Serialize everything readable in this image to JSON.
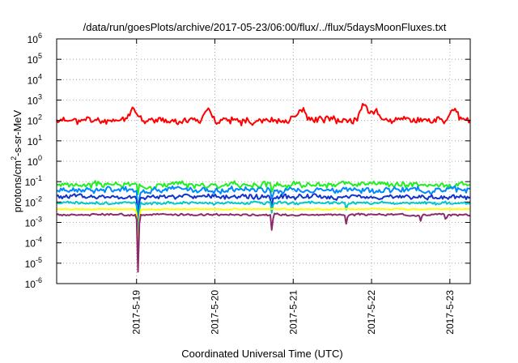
{
  "chart_data": {
    "type": "line",
    "title": "/data/run/goesPlots/archive/2017-05-23/06:00/flux/../flux/5daysMoonFluxes.txt",
    "xlabel": "Coordinated Universal Time (UTC)",
    "ylabel": "protons/cm2-s-sr-MeV",
    "ylabel_parts": {
      "pre": "protons/cm",
      "sup": "2",
      "post": "-s-sr-MeV"
    },
    "yscale": "log",
    "ylim_exp": [
      -6,
      6
    ],
    "y_ticks": [
      {
        "base": "10",
        "exp": "-6"
      },
      {
        "base": "10",
        "exp": "-5"
      },
      {
        "base": "10",
        "exp": "-4"
      },
      {
        "base": "10",
        "exp": "-3"
      },
      {
        "base": "10",
        "exp": "-2"
      },
      {
        "base": "10",
        "exp": "-1"
      },
      {
        "base": "10",
        "exp": "0"
      },
      {
        "base": "10",
        "exp": "1"
      },
      {
        "base": "10",
        "exp": "2"
      },
      {
        "base": "10",
        "exp": "3"
      },
      {
        "base": "10",
        "exp": "4"
      },
      {
        "base": "10",
        "exp": "5"
      },
      {
        "base": "10",
        "exp": "6"
      }
    ],
    "x_ticks": [
      "2017-5-19",
      "2017-5-20",
      "2017-5-21",
      "2017-5-22",
      "2017-5-23"
    ],
    "xlim_days": [
      -1.02,
      4.26
    ],
    "grid": true,
    "legend": "none",
    "series": [
      {
        "color": "#ff0000",
        "base_log": 2.0,
        "amp": 0.22,
        "seed": 11,
        "bumps": [
          [
            -0.05,
            0.55
          ],
          [
            0.9,
            0.5
          ],
          [
            2.1,
            0.6
          ],
          [
            2.9,
            0.7
          ],
          [
            3.05,
            0.55
          ],
          [
            4.05,
            0.55
          ]
        ]
      },
      {
        "color": "#22ee22",
        "base_log": -1.15,
        "amp": 0.18,
        "seed": 3,
        "dips": [
          [
            0.02,
            0.6
          ],
          [
            1.73,
            0.35
          ]
        ]
      },
      {
        "color": "#0088ff",
        "base_log": -1.4,
        "amp": 0.18,
        "seed": 7,
        "dips": [
          [
            0.02,
            1.4
          ],
          [
            1.73,
            0.4
          ]
        ]
      },
      {
        "color": "#1133cc",
        "base_log": -1.75,
        "amp": 0.15,
        "seed": 5,
        "dips": [
          [
            0.02,
            1.8
          ],
          [
            1.73,
            0.5
          ]
        ]
      },
      {
        "color": "#00c8c8",
        "base_log": -2.05,
        "amp": 0.09,
        "seed": 9,
        "dips": [
          [
            0.02,
            2.3
          ],
          [
            1.73,
            0.6
          ],
          [
            2.68,
            0.4
          ]
        ]
      },
      {
        "color": "#ffff00",
        "base_log": -2.35,
        "amp": 0.03,
        "seed": 13,
        "dips": [
          [
            0.02,
            2.7
          ]
        ]
      },
      {
        "color": "#8b2b6b",
        "base_log": -2.62,
        "amp": 0.06,
        "seed": 17,
        "dips": [
          [
            0.02,
            2.85
          ],
          [
            1.73,
            0.85
          ],
          [
            2.68,
            0.5
          ],
          [
            3.63,
            0.35
          ],
          [
            3.95,
            0.3
          ]
        ]
      }
    ]
  }
}
